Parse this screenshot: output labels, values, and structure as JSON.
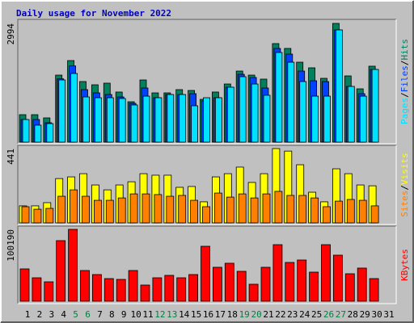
{
  "chart_data": [
    {
      "type": "bar",
      "title": "Daily usage for November 2022",
      "categories": [
        "1",
        "2",
        "3",
        "4",
        "5",
        "6",
        "7",
        "8",
        "9",
        "10",
        "11",
        "12",
        "13",
        "14",
        "15",
        "16",
        "17",
        "18",
        "19",
        "20",
        "21",
        "22",
        "23",
        "24",
        "25",
        "26",
        "27",
        "28",
        "29",
        "30",
        "31"
      ],
      "weekends": [
        5,
        6,
        12,
        13,
        19,
        20,
        26,
        27
      ],
      "weekend_color": "#008040",
      "legend_separator": "/",
      "series": [
        {
          "name": "Hits",
          "color": "#00805c",
          "values": [
            692,
            692,
            611,
            1690,
            2057,
            1528,
            1446,
            1487,
            1263,
            1018,
            1568,
            1242,
            1242,
            1324,
            1303,
            1079,
            1263,
            1466,
            1792,
            1690,
            1589,
            2485,
            2363,
            2016,
            1874,
            1609,
            2994,
            1670,
            1344,
            1915,
            null
          ]
        },
        {
          "name": "Files",
          "color": "#0040ff",
          "values": [
            570,
            570,
            489,
            1596,
            1922,
            1324,
            1242,
            1201,
            1140,
            978,
            1365,
            1120,
            1201,
            1201,
            1222,
            1039,
            1120,
            1385,
            1711,
            1630,
            1365,
            2363,
            2220,
            1792,
            1548,
            1528,
            2831,
            1405,
            1222,
            1833,
            null
          ]
        },
        {
          "name": "Pages",
          "color": "#00e0ff",
          "values": [
            570,
            428,
            468,
            1568,
            1731,
            1140,
            1120,
            1120,
            1100,
            937,
            1160,
            1120,
            1201,
            1201,
            917,
            1120,
            1120,
            1385,
            1650,
            1466,
            1182,
            2261,
            2016,
            1528,
            1160,
            1160,
            2831,
            1405,
            1160,
            1833,
            null
          ]
        }
      ],
      "ylim": [
        0,
        2994
      ],
      "yticks": [
        2994
      ]
    },
    {
      "type": "bar",
      "categories": [
        "1",
        "2",
        "3",
        "4",
        "5",
        "6",
        "7",
        "8",
        "9",
        "10",
        "11",
        "12",
        "13",
        "14",
        "15",
        "16",
        "17",
        "18",
        "19",
        "20",
        "21",
        "22",
        "23",
        "24",
        "25",
        "26",
        "27",
        "28",
        "29",
        "30",
        "31"
      ],
      "legend_separator": "/",
      "series": [
        {
          "name": "Visits",
          "color": "#ffff00",
          "values": [
            101,
            101,
            120,
            263,
            273,
            292,
            225,
            196,
            225,
            244,
            292,
            283,
            283,
            211,
            216,
            125,
            273,
            292,
            331,
            240,
            292,
            441,
            426,
            345,
            182,
            125,
            321,
            292,
            225,
            220,
            null
          ]
        },
        {
          "name": "Sites",
          "color": "#ff8000",
          "values": [
            96,
            81,
            86,
            158,
            196,
            158,
            134,
            134,
            148,
            172,
            172,
            168,
            158,
            163,
            134,
            96,
            177,
            153,
            172,
            148,
            172,
            187,
            163,
            163,
            148,
            96,
            129,
            139,
            134,
            101,
            null
          ]
        }
      ],
      "ylim": [
        0,
        441
      ],
      "yticks": [
        441
      ]
    },
    {
      "type": "bar",
      "categories": [
        "1",
        "2",
        "3",
        "4",
        "5",
        "6",
        "7",
        "8",
        "9",
        "10",
        "11",
        "12",
        "13",
        "14",
        "15",
        "16",
        "17",
        "18",
        "19",
        "20",
        "21",
        "22",
        "23",
        "24",
        "25",
        "26",
        "27",
        "28",
        "29",
        "30",
        "31"
      ],
      "weekends": [
        5,
        6,
        12,
        13,
        19,
        20,
        26,
        27
      ],
      "weekend_color": "#008040",
      "series": [
        {
          "name": "KBytes",
          "color": "#ff0000",
          "values": [
            45040,
            32650,
            27020,
            84450,
            100190,
            42790,
            37160,
            31530,
            30400,
            42790,
            22520,
            32650,
            36030,
            32650,
            37160,
            76570,
            47290,
            52920,
            41660,
            23650,
            47290,
            78820,
            54050,
            57420,
            40530,
            78820,
            64180,
            38280,
            46170,
            31530,
            null
          ]
        }
      ],
      "ylim": [
        0,
        100190
      ],
      "yticks": [
        100190
      ]
    }
  ]
}
